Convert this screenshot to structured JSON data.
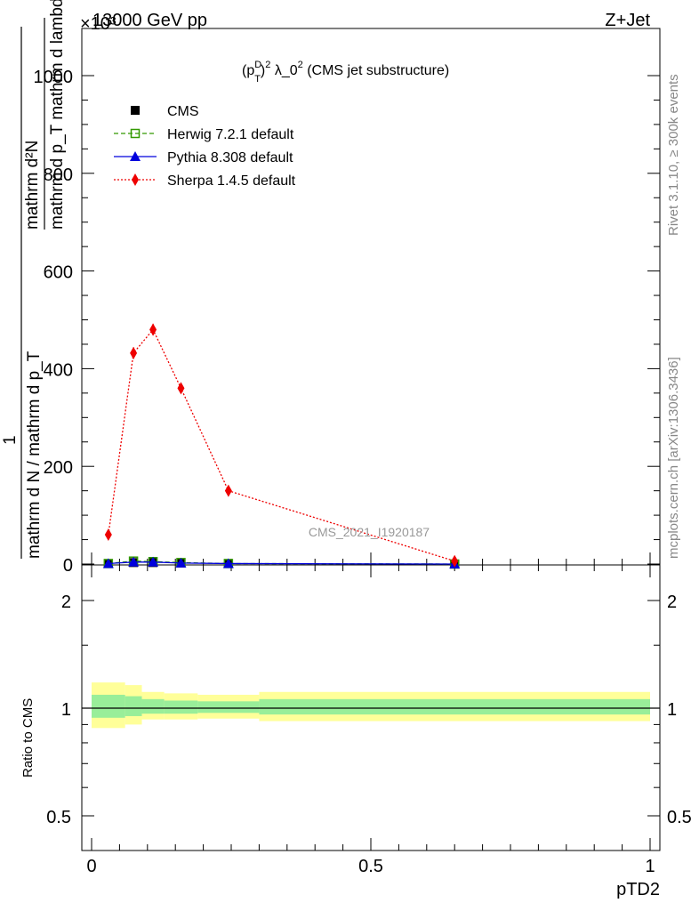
{
  "header": {
    "left": "13000 GeV pp",
    "right": "Z+Jet",
    "multiplier": "×10³"
  },
  "side_labels": {
    "rivet": "Rivet 3.1.10, ≥ 300k events",
    "mcplots": "mcplots.cern.ch [arXiv:1306.3436]"
  },
  "watermark": "CMS_2021_I1920187",
  "main_title": {
    "p": "(p",
    "sup_d": "D",
    "sub_t": "T",
    "sup_2": "2",
    "lambda": " λ_0",
    "sup_2b": "2",
    "desc": " (CMS jet substructure)"
  },
  "y_label_top": {
    "numerator": "mathrm d²N",
    "denominator": "mathrm d p_T mathrm d lambda"
  },
  "y_label_bottom": {
    "numerator": "1",
    "denominator": "mathrm d N / mathrm d p_T"
  },
  "ratio_ylabel": "Ratio to CMS",
  "x_label": "pTD2",
  "colors": {
    "cms": "#000000",
    "herwig": "#339900",
    "pythia": "#0000dd",
    "sherpa": "#ee0000",
    "band_outer": "#ffff99",
    "band_inner": "#99ee99"
  },
  "legend": [
    {
      "key": "cms",
      "label": "CMS"
    },
    {
      "key": "herwig",
      "label": "Herwig 7.2.1 default"
    },
    {
      "key": "pythia",
      "label": "Pythia 8.308 default"
    },
    {
      "key": "sherpa",
      "label": "Sherpa 1.4.5 default"
    }
  ],
  "chart_data": {
    "type": "line",
    "x_unit_note": "y values in units of 10^3",
    "xlim": [
      0,
      1
    ],
    "ylim": [
      0,
      1000
    ],
    "ylim_max_shown": 1000,
    "x_ticks": [
      "0",
      "0.5",
      "1"
    ],
    "y_ticks": [
      "0",
      "200",
      "400",
      "600",
      "800",
      "1000"
    ],
    "ratio_ylim": [
      0.5,
      2
    ],
    "ratio_ticks": [
      "0.5",
      "1",
      "2"
    ],
    "series": [
      {
        "name": "CMS",
        "key": "cms",
        "marker": "square",
        "x": [
          0.03,
          0.075,
          0.11,
          0.16,
          0.245,
          0.65
        ],
        "y": [
          1,
          3,
          3,
          2,
          1,
          0
        ]
      },
      {
        "name": "Herwig 7.2.1 default",
        "key": "herwig",
        "marker": "open-square",
        "x": [
          0.03,
          0.075,
          0.11,
          0.16,
          0.245,
          0.65
        ],
        "y": [
          1,
          6,
          5,
          3,
          1,
          0
        ]
      },
      {
        "name": "Pythia 8.308 default",
        "key": "pythia",
        "marker": "triangle",
        "x": [
          0.03,
          0.075,
          0.11,
          0.16,
          0.245,
          0.65
        ],
        "y": [
          1,
          4,
          4,
          2,
          1,
          0
        ]
      },
      {
        "name": "Sherpa 1.4.5 default",
        "key": "sherpa",
        "marker": "diamond",
        "x": [
          0.03,
          0.075,
          0.11,
          0.16,
          0.245,
          0.65
        ],
        "y": [
          60,
          432,
          480,
          360,
          150,
          6
        ],
        "err": [
          5,
          12,
          12,
          10,
          5,
          2
        ]
      }
    ],
    "ratio_bands": [
      {
        "x0": 0.0,
        "x1": 0.06,
        "outer": [
          0.88,
          1.18
        ],
        "inner": [
          0.94,
          1.09
        ]
      },
      {
        "x0": 0.06,
        "x1": 0.09,
        "outer": [
          0.9,
          1.16
        ],
        "inner": [
          0.95,
          1.08
        ]
      },
      {
        "x0": 0.09,
        "x1": 0.13,
        "outer": [
          0.93,
          1.11
        ],
        "inner": [
          0.965,
          1.06
        ]
      },
      {
        "x0": 0.13,
        "x1": 0.19,
        "outer": [
          0.93,
          1.1
        ],
        "inner": [
          0.965,
          1.05
        ]
      },
      {
        "x0": 0.19,
        "x1": 0.3,
        "outer": [
          0.935,
          1.09
        ],
        "inner": [
          0.97,
          1.045
        ]
      },
      {
        "x0": 0.3,
        "x1": 1.0,
        "outer": [
          0.92,
          1.11
        ],
        "inner": [
          0.96,
          1.06
        ]
      }
    ]
  }
}
